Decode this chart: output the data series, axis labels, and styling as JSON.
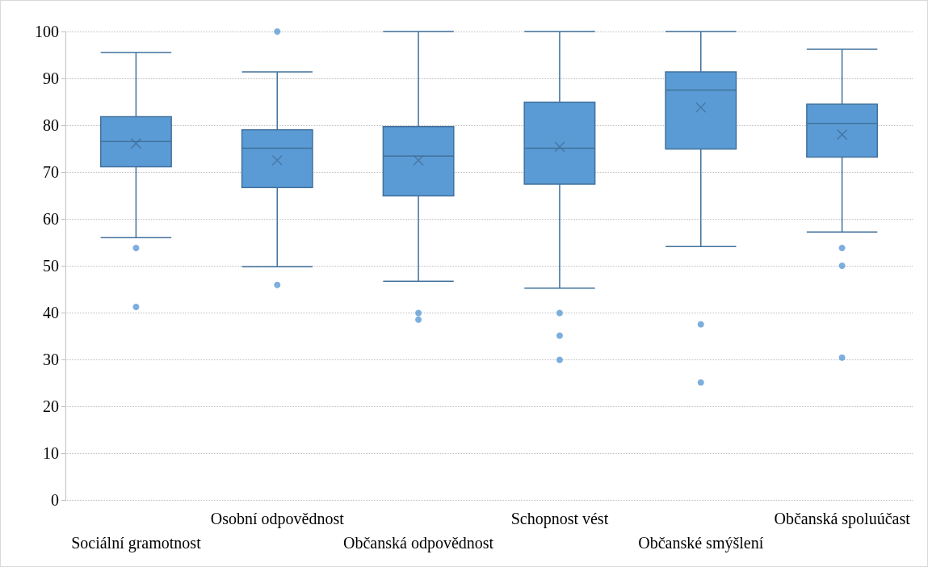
{
  "chart_data": {
    "type": "box",
    "categories": [
      "Sociální gramotnost",
      "Osobní odpovědnost",
      "Občanská odpovědnost",
      "Schopnost vést",
      "Občanské smýšlení",
      "Občanská spoluúčast"
    ],
    "color": "#5b9bd5",
    "boxes": [
      {
        "low": 56,
        "q1": 71.1,
        "median": 76.5,
        "q3": 81.8,
        "high": 95.5,
        "mean": 76.1,
        "outliers": [
          53.8,
          41.2
        ]
      },
      {
        "low": 49.8,
        "q1": 66.7,
        "median": 75.1,
        "q3": 79,
        "high": 91.4,
        "mean": 72.5,
        "outliers": [
          100,
          45.9
        ]
      },
      {
        "low": 46.7,
        "q1": 64.9,
        "median": 73.4,
        "q3": 79.7,
        "high": 100,
        "mean": 72.5,
        "outliers": [
          39.9,
          38.5
        ]
      },
      {
        "low": 45.2,
        "q1": 67.4,
        "median": 75.1,
        "q3": 84.9,
        "high": 100,
        "mean": 75.4,
        "outliers": [
          39.9,
          35.1,
          29.9
        ]
      },
      {
        "low": 54.1,
        "q1": 74.9,
        "median": 87.5,
        "q3": 91.4,
        "high": 100,
        "mean": 83.8,
        "outliers": [
          37.5,
          25.1
        ]
      },
      {
        "low": 57.2,
        "q1": 73.2,
        "median": 80.4,
        "q3": 84.5,
        "high": 96.2,
        "mean": 78,
        "outliers": [
          53.8,
          50,
          30.4
        ]
      }
    ],
    "ylim": [
      0,
      100
    ],
    "yticks": [
      0,
      10,
      20,
      30,
      40,
      50,
      60,
      70,
      80,
      90,
      100
    ],
    "grid": "y"
  }
}
